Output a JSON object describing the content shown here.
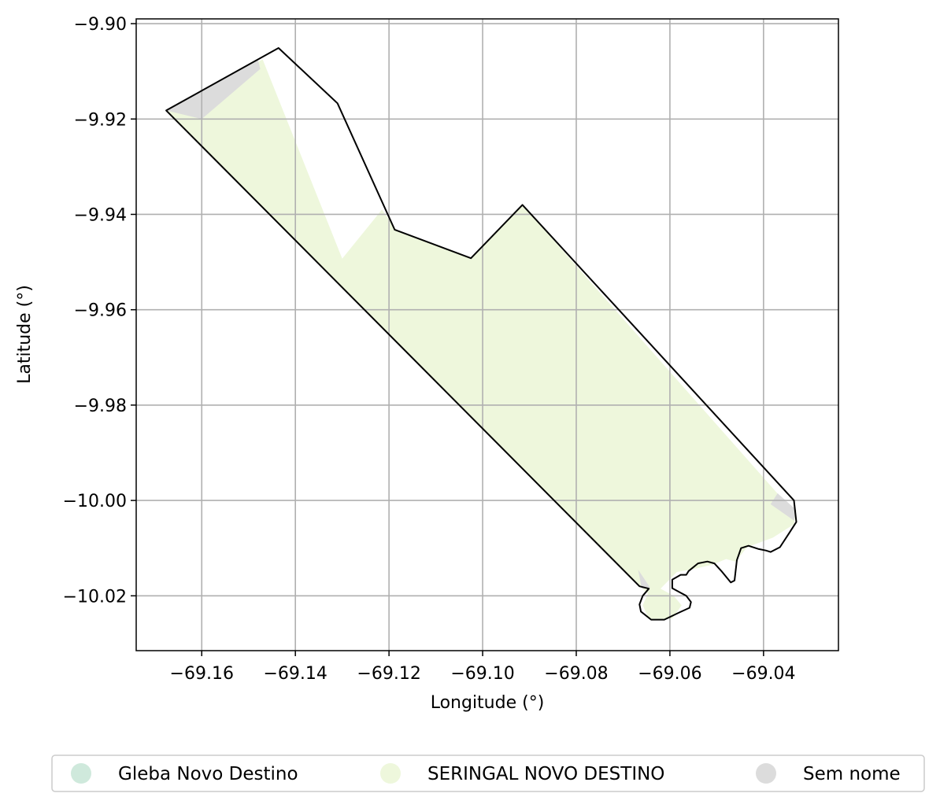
{
  "chart_data": {
    "type": "map",
    "xlabel": "Longitude (°)",
    "ylabel": "Latitude (°)",
    "xlim": [
      -69.174,
      -69.024
    ],
    "ylim": [
      -10.0315,
      -9.899
    ],
    "grid": true,
    "x_ticks": [
      {
        "value": -69.16,
        "label": "−69.16"
      },
      {
        "value": -69.14,
        "label": "−69.14"
      },
      {
        "value": -69.12,
        "label": "−69.12"
      },
      {
        "value": -69.1,
        "label": "−69.10"
      },
      {
        "value": -69.08,
        "label": "−69.08"
      },
      {
        "value": -69.06,
        "label": "−69.06"
      },
      {
        "value": -69.04,
        "label": "−69.04"
      }
    ],
    "y_ticks": [
      {
        "value": -9.9,
        "label": "−9.90"
      },
      {
        "value": -9.92,
        "label": "−9.92"
      },
      {
        "value": -9.94,
        "label": "−9.94"
      },
      {
        "value": -9.96,
        "label": "−9.96"
      },
      {
        "value": -9.98,
        "label": "−9.98"
      },
      {
        "value": -10.0,
        "label": "−10.00"
      },
      {
        "value": -10.02,
        "label": "−10.02"
      }
    ],
    "legend_placement": "bottom",
    "legend": [
      {
        "label": "Gleba Novo Destino",
        "color": "#cfe9dc"
      },
      {
        "label": "SERINGAL NOVO DESTINO",
        "color": "#eef7dc"
      },
      {
        "label": "Sem nome",
        "color": "#dcdcdc"
      }
    ],
    "regions": [
      {
        "name": "SERINGAL NOVO DESTINO",
        "color": "#eef7dc",
        "polygons": [
          [
            [
              -69.1676,
              -9.9182
            ],
            [
              -69.147,
              -9.9075
            ],
            [
              -69.13,
              -9.9493
            ],
            [
              -69.1215,
              -9.939
            ],
            [
              -69.1185,
              -9.9432
            ],
            [
              -69.1025,
              -9.9492
            ],
            [
              -69.0915,
              -9.938
            ],
            [
              -69.0368,
              -9.9988
            ],
            [
              -69.033,
              -10.0022
            ],
            [
              -69.0335,
              -10.005
            ],
            [
              -69.038,
              -10.0078
            ],
            [
              -69.0435,
              -10.0098
            ],
            [
              -69.046,
              -10.0128
            ],
            [
              -69.048,
              -10.0123
            ],
            [
              -69.051,
              -10.0135
            ],
            [
              -69.0555,
              -10.0145
            ],
            [
              -69.0585,
              -10.015
            ],
            [
              -69.062,
              -10.0185
            ],
            [
              -69.0592,
              -10.02
            ],
            [
              -69.0575,
              -10.022
            ],
            [
              -69.0595,
              -10.0248
            ],
            [
              -69.061,
              -10.0248
            ],
            [
              -69.0645,
              -10.0248
            ],
            [
              -69.0658,
              -10.022
            ],
            [
              -69.0647,
              -10.0195
            ],
            [
              -69.0665,
              -10.018
            ]
          ]
        ]
      },
      {
        "name": "Sem nome",
        "color": "#dcdcdc",
        "polygons": [
          [
            [
              -69.1676,
              -9.9182
            ],
            [
              -69.148,
              -9.9075
            ],
            [
              -69.1475,
              -9.9095
            ],
            [
              -69.16,
              -9.92
            ]
          ],
          [
            [
              -69.037,
              -9.9985
            ],
            [
              -69.033,
              -10.002
            ],
            [
              -69.0335,
              -10.0042
            ],
            [
              -69.0385,
              -10.0008
            ]
          ],
          [
            [
              -69.0668,
              -10.0145
            ],
            [
              -69.0642,
              -10.0183
            ],
            [
              -69.066,
              -10.0185
            ]
          ]
        ]
      }
    ],
    "boundary": [
      [
        -69.1676,
        -9.9182
      ],
      [
        -69.1436,
        -9.9051
      ],
      [
        -69.131,
        -9.9167
      ],
      [
        -69.1188,
        -9.9432
      ],
      [
        -69.1025,
        -9.9492
      ],
      [
        -69.0915,
        -9.938
      ],
      [
        -69.0335,
        -10.0
      ],
      [
        -69.033,
        -10.0045
      ],
      [
        -69.0345,
        -10.0068
      ],
      [
        -69.0365,
        -10.0098
      ],
      [
        -69.0385,
        -10.0108
      ],
      [
        -69.0395,
        -10.0105
      ],
      [
        -69.041,
        -10.0102
      ],
      [
        -69.0432,
        -10.0095
      ],
      [
        -69.0448,
        -10.01
      ],
      [
        -69.0457,
        -10.0125
      ],
      [
        -69.0462,
        -10.0168
      ],
      [
        -69.047,
        -10.0172
      ],
      [
        -69.049,
        -10.0148
      ],
      [
        -69.0505,
        -10.0132
      ],
      [
        -69.052,
        -10.0128
      ],
      [
        -69.054,
        -10.0132
      ],
      [
        -69.056,
        -10.0148
      ],
      [
        -69.0565,
        -10.0156
      ],
      [
        -69.0577,
        -10.0156
      ],
      [
        -69.0595,
        -10.0166
      ],
      [
        -69.0595,
        -10.0184
      ],
      [
        -69.058,
        -10.0192
      ],
      [
        -69.0565,
        -10.02
      ],
      [
        -69.0555,
        -10.0213
      ],
      [
        -69.0558,
        -10.0225
      ],
      [
        -69.058,
        -10.0235
      ],
      [
        -69.0612,
        -10.025
      ],
      [
        -69.064,
        -10.025
      ],
      [
        -69.0662,
        -10.0233
      ],
      [
        -69.0665,
        -10.0218
      ],
      [
        -69.0658,
        -10.02
      ],
      [
        -69.0645,
        -10.0185
      ],
      [
        -69.0665,
        -10.018
      ]
    ]
  }
}
